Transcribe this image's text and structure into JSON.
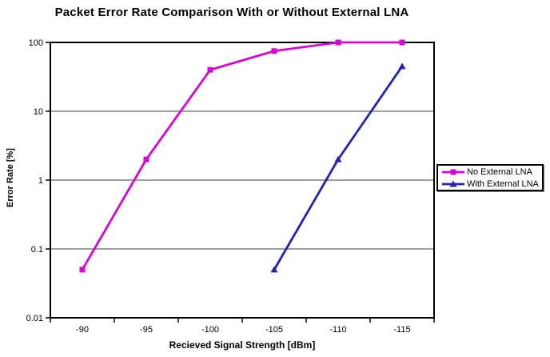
{
  "chart_data": {
    "type": "line",
    "title": "Packet Error Rate Comparison With or Without External LNA",
    "xlabel": "Recieved Signal Strength [dBm]",
    "ylabel": "Error Rate [%]",
    "x_categories": [
      "-90",
      "-95",
      "-100",
      "-105",
      "-110",
      "-115"
    ],
    "y_scale": "log",
    "ylim": [
      0.01,
      100
    ],
    "y_ticks": [
      100,
      10,
      1,
      0.1,
      0.01
    ],
    "grid": true,
    "legend_position": "right-outside",
    "series": [
      {
        "name": "No External LNA",
        "color": "#D607D6",
        "marker": "square",
        "x": [
          "-90",
          "-95",
          "-100",
          "-105",
          "-110",
          "-115"
        ],
        "values": [
          0.05,
          2,
          40,
          75,
          100,
          100
        ]
      },
      {
        "name": "With External LNA",
        "color": "#2323B0",
        "marker": "triangle",
        "x": [
          "-105",
          "-110",
          "-115"
        ],
        "values": [
          0.05,
          2,
          45
        ]
      }
    ]
  },
  "colors": {
    "background": "#FFFFFF",
    "frame": "#000000",
    "grid": "#666666",
    "text": "#000000"
  }
}
